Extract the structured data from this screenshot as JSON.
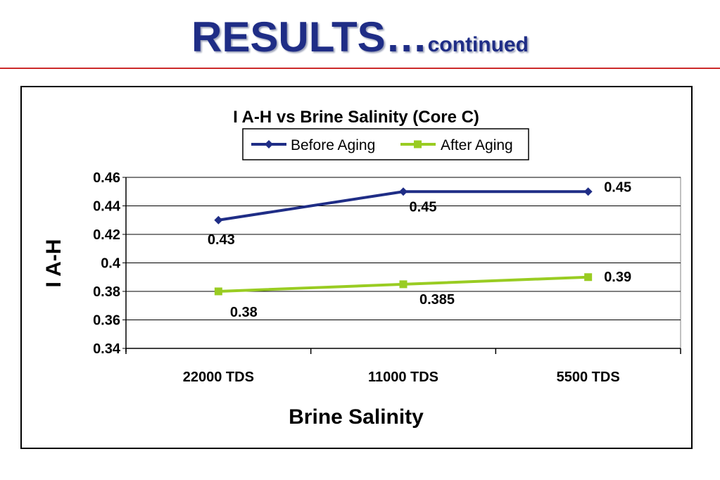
{
  "slide": {
    "title_main": "RESULTS…",
    "title_sub": "continued"
  },
  "colors": {
    "title": "#1f2d86",
    "rule": "#cc2a2a",
    "before_aging": "#1f2d86",
    "after_aging": "#99cc22"
  },
  "chart_data": {
    "type": "line",
    "title": "I A-H  vs  Brine Salinity (Core C)",
    "xlabel": "Brine Salinity",
    "ylabel": "I A-H",
    "categories": [
      "22000 TDS",
      "11000 TDS",
      "5500 TDS"
    ],
    "ylim": [
      0.34,
      0.46
    ],
    "yticks": [
      "0.46",
      "0.44",
      "0.42",
      "0.4",
      "0.38",
      "0.36",
      "0.34"
    ],
    "grid": true,
    "legend_position": "top",
    "series": [
      {
        "name": "Before Aging",
        "values": [
          0.43,
          0.45,
          0.45
        ],
        "labels": [
          "0.43",
          "0.45",
          "0.45"
        ],
        "marker": "diamond"
      },
      {
        "name": "After Aging",
        "values": [
          0.38,
          0.385,
          0.39
        ],
        "labels": [
          "0.38",
          "0.385",
          "0.39"
        ],
        "marker": "square"
      }
    ]
  }
}
